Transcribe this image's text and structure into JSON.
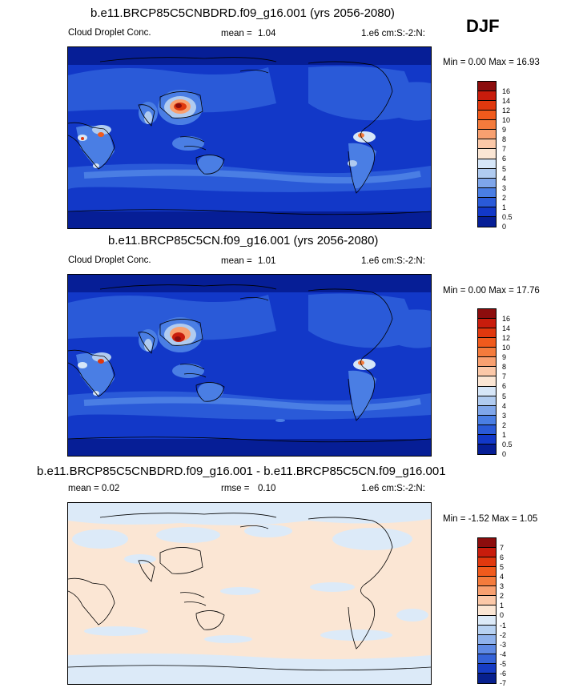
{
  "season": "DJF",
  "panels": [
    {
      "title": "b.e11.BRCP85C5CNBDRD.f09_g16.001 (yrs 2056-2080)",
      "left_label": "Cloud Droplet Conc.",
      "stat_label": "mean =",
      "stat_value": "1.04",
      "units": "1.e6 cm:S:-2:N:",
      "minmax": "Min =   0.00 Max =  16.93",
      "levels": [
        "16",
        "14",
        "12",
        "10",
        "9",
        "8",
        "7",
        "6",
        "5",
        "4",
        "3",
        "2",
        "1",
        "0.5",
        "0"
      ],
      "colors": [
        "#8c0d0d",
        "#c81c0c",
        "#e0380e",
        "#f05a1c",
        "#f47b3c",
        "#f8a070",
        "#fbc8a8",
        "#fbe6d4",
        "#d6e6f8",
        "#b0cbf0",
        "#7fa6ea",
        "#4a7ee4",
        "#2a5ad8",
        "#1238c8",
        "#061e96"
      ]
    },
    {
      "title": "b.e11.BRCP85C5CN.f09_g16.001 (yrs 2056-2080)",
      "left_label": "Cloud Droplet Conc.",
      "stat_label": "mean =",
      "stat_value": "1.01",
      "units": "1.e6 cm:S:-2:N:",
      "minmax": "Min =   0.00 Max =  17.76",
      "levels": [
        "16",
        "14",
        "12",
        "10",
        "9",
        "8",
        "7",
        "6",
        "5",
        "4",
        "3",
        "2",
        "1",
        "0.5",
        "0"
      ],
      "colors": [
        "#8c0d0d",
        "#c81c0c",
        "#e0380e",
        "#f05a1c",
        "#f47b3c",
        "#f8a070",
        "#fbc8a8",
        "#fbe6d4",
        "#d6e6f8",
        "#b0cbf0",
        "#7fa6ea",
        "#4a7ee4",
        "#2a5ad8",
        "#1238c8",
        "#061e96"
      ]
    },
    {
      "title": "b.e11.BRCP85C5CNBDRD.f09_g16.001 - b.e11.BRCP85C5CN.f09_g16.001",
      "left_label": "mean =   0.02",
      "stat_label": "rmse =",
      "stat_value": "0.10",
      "units": "1.e6 cm:S:-2:N:",
      "minmax": "Min =  -1.52 Max =   1.05",
      "levels": [
        "7",
        "6",
        "5",
        "4",
        "3",
        "2",
        "1",
        "0",
        "-1",
        "-2",
        "-3",
        "-4",
        "-5",
        "-6",
        "-7"
      ],
      "colors": [
        "#8c0d0d",
        "#c81c0c",
        "#e0380e",
        "#f05a1c",
        "#f47b3c",
        "#f8a070",
        "#fbc8a8",
        "#fbe6d4",
        "#dceaf8",
        "#b8d2f2",
        "#8fb2ec",
        "#5f8ae4",
        "#3563d8",
        "#163cc4",
        "#07208e"
      ]
    }
  ]
}
